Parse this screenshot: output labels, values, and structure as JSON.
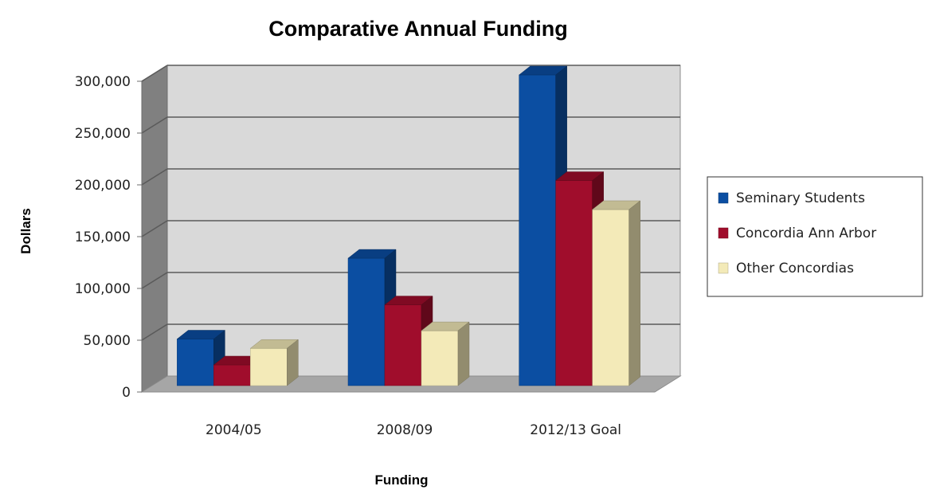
{
  "chart_data": {
    "type": "bar",
    "title": "Comparative Annual Funding",
    "xlabel": "Funding",
    "ylabel": "Dollars",
    "categories": [
      "2004/05",
      "2008/09",
      "2012/13 Goal"
    ],
    "series": [
      {
        "name": "Seminary Students",
        "values": [
          45000,
          123000,
          300000
        ],
        "color": "#0b4ea2"
      },
      {
        "name": "Concordia Ann Arbor",
        "values": [
          20000,
          78000,
          198000
        ],
        "color": "#a00d2c"
      },
      {
        "name": "Other Concordias",
        "values": [
          36000,
          53000,
          170000
        ],
        "color": "#f3eab8"
      }
    ],
    "ylim": [
      0,
      300000
    ],
    "yticks": [
      0,
      50000,
      100000,
      150000,
      200000,
      250000,
      300000
    ],
    "ytick_labels": [
      "0",
      "50,000",
      "100,000",
      "150,000",
      "200,000",
      "250,000",
      "300,000"
    ],
    "grid": true,
    "legend_position": "right",
    "style": "3d-column"
  }
}
